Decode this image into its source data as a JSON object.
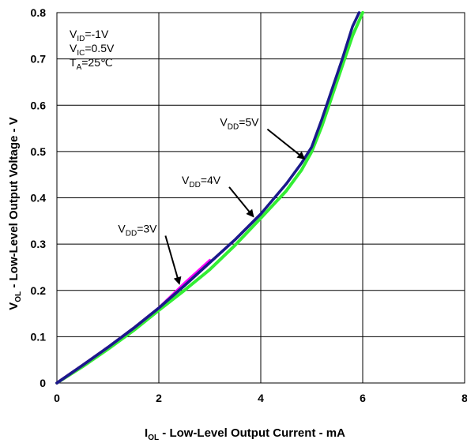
{
  "chart_data": {
    "type": "line",
    "xlabel": {
      "main": "I",
      "sub": "OL",
      "rest": " - Low-Level Output Current - mA"
    },
    "ylabel": {
      "main": "V",
      "sub": "OL",
      "rest": " - Low-Level Output Voltage - V"
    },
    "xlim": [
      0,
      8
    ],
    "ylim": [
      0,
      0.8
    ],
    "xticks": [
      0,
      2,
      4,
      6,
      8
    ],
    "xtick_labels": [
      "0",
      "2",
      "4",
      "6",
      "8"
    ],
    "yticks": [
      0,
      0.1,
      0.2,
      0.3,
      0.4,
      0.5,
      0.6,
      0.7,
      0.8
    ],
    "ytick_labels": [
      "0",
      "0.1",
      "0.2",
      "0.3",
      "0.4",
      "0.5",
      "0.6",
      "0.7",
      "0.8"
    ],
    "grid": true,
    "conditions": [
      {
        "main": "V",
        "sub": "ID",
        "rest": "=-1V"
      },
      {
        "main": "V",
        "sub": "IC",
        "rest": "=0.5V"
      },
      {
        "main": "T",
        "sub": "A",
        "rest": "=25℃"
      }
    ],
    "series": [
      {
        "label": {
          "main": "V",
          "sub": "DD",
          "rest": "=5V"
        },
        "color": "#1a1a8c",
        "label_pos": [
          3.2,
          0.555
        ],
        "arrow_to": [
          4.85,
          0.485
        ],
        "x": [
          0,
          0.5,
          1.0,
          1.5,
          2.0,
          2.5,
          3.0,
          3.5,
          4.0,
          4.5,
          4.8,
          5.0,
          5.2,
          5.4,
          5.6,
          5.8,
          5.93
        ],
        "y": [
          0,
          0.038,
          0.077,
          0.118,
          0.162,
          0.21,
          0.26,
          0.31,
          0.365,
          0.43,
          0.475,
          0.51,
          0.57,
          0.635,
          0.7,
          0.77,
          0.8
        ]
      },
      {
        "label": {
          "main": "V",
          "sub": "DD",
          "rest": "=4V"
        },
        "color": "#800080",
        "label_pos": [
          2.45,
          0.43
        ],
        "arrow_to": [
          3.85,
          0.36
        ],
        "x": [
          0,
          0.5,
          1.0,
          1.5,
          2.0,
          2.5,
          3.0,
          3.5,
          4.0
        ],
        "y": [
          0,
          0.038,
          0.077,
          0.118,
          0.162,
          0.21,
          0.26,
          0.31,
          0.365
        ]
      },
      {
        "label": {
          "main": "V",
          "sub": "DD",
          "rest": "=3V"
        },
        "color": "#ff00ff",
        "label_pos": [
          1.2,
          0.325
        ],
        "arrow_to": [
          2.4,
          0.215
        ],
        "x": [
          0,
          0.5,
          1.0,
          1.5,
          2.0,
          2.5,
          3.0
        ],
        "y": [
          0,
          0.038,
          0.077,
          0.118,
          0.162,
          0.215,
          0.265
        ]
      },
      {
        "label": {
          "main": "",
          "sub": "",
          "rest": ""
        },
        "color": "#33ee33",
        "x": [
          0,
          0.5,
          1.0,
          1.5,
          2.0,
          2.5,
          3.0,
          3.5,
          4.0,
          4.5,
          4.8,
          5.0,
          5.2,
          5.4,
          5.6,
          5.8,
          6.0
        ],
        "y": [
          0,
          0.035,
          0.073,
          0.113,
          0.157,
          0.2,
          0.245,
          0.298,
          0.356,
          0.415,
          0.46,
          0.5,
          0.555,
          0.62,
          0.685,
          0.75,
          0.8
        ]
      }
    ]
  }
}
